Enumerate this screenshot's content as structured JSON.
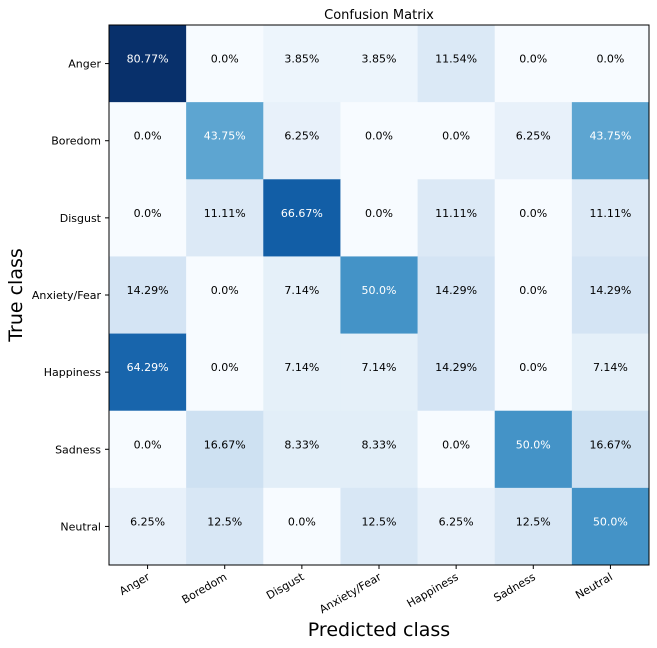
{
  "chart_data": {
    "type": "heatmap",
    "title": "Confusion Matrix",
    "xlabel": "Predicted class",
    "ylabel": "True class",
    "x_categories": [
      "Anger",
      "Boredom",
      "Disgust",
      "Anxiety/Fear",
      "Happiness",
      "Sadness",
      "Neutral"
    ],
    "y_categories": [
      "Anger",
      "Boredom",
      "Disgust",
      "Anxiety/Fear",
      "Happiness",
      "Sadness",
      "Neutral"
    ],
    "values": [
      [
        80.77,
        0.0,
        3.85,
        3.85,
        11.54,
        0.0,
        0.0
      ],
      [
        0.0,
        43.75,
        6.25,
        0.0,
        0.0,
        6.25,
        43.75
      ],
      [
        0.0,
        11.11,
        66.67,
        0.0,
        11.11,
        0.0,
        11.11
      ],
      [
        14.29,
        0.0,
        7.14,
        50.0,
        14.29,
        0.0,
        14.29
      ],
      [
        64.29,
        0.0,
        7.14,
        7.14,
        14.29,
        0.0,
        7.14
      ],
      [
        0.0,
        16.67,
        8.33,
        8.33,
        0.0,
        50.0,
        16.67
      ],
      [
        6.25,
        12.5,
        0.0,
        12.5,
        6.25,
        12.5,
        50.0
      ]
    ],
    "labels": [
      [
        "80.77%",
        "0.0%",
        "3.85%",
        "3.85%",
        "11.54%",
        "0.0%",
        "0.0%"
      ],
      [
        "0.0%",
        "43.75%",
        "6.25%",
        "0.0%",
        "0.0%",
        "6.25%",
        "43.75%"
      ],
      [
        "0.0%",
        "11.11%",
        "66.67%",
        "0.0%",
        "11.11%",
        "0.0%",
        "11.11%"
      ],
      [
        "14.29%",
        "0.0%",
        "7.14%",
        "50.0%",
        "14.29%",
        "0.0%",
        "14.29%"
      ],
      [
        "64.29%",
        "0.0%",
        "7.14%",
        "7.14%",
        "14.29%",
        "0.0%",
        "7.14%"
      ],
      [
        "0.0%",
        "16.67%",
        "8.33%",
        "8.33%",
        "0.0%",
        "50.0%",
        "16.67%"
      ],
      [
        "6.25%",
        "12.5%",
        "0.0%",
        "12.5%",
        "6.25%",
        "12.5%",
        "50.0%"
      ]
    ],
    "colormap": "Blues",
    "value_range": [
      0,
      80.77
    ],
    "grid": false
  }
}
